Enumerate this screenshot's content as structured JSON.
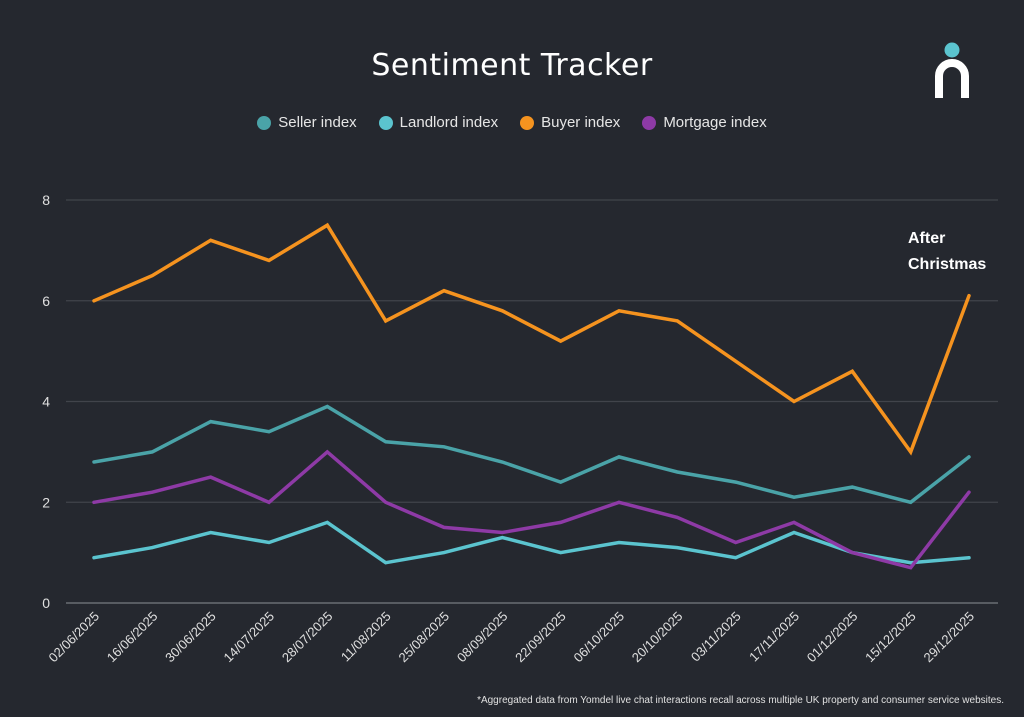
{
  "chart_data": {
    "type": "line",
    "title": "Sentiment Tracker",
    "xlabel": "",
    "ylabel": "",
    "ylim": [
      0,
      8
    ],
    "yticks": [
      0,
      2,
      4,
      6,
      8
    ],
    "grid": true,
    "legend_position": "top-center",
    "x": [
      "02/06/2025",
      "16/06/2025",
      "30/06/2025",
      "14/07/2025",
      "28/07/2025",
      "11/08/2025",
      "25/08/2025",
      "08/09/2025",
      "22/09/2025",
      "06/10/2025",
      "20/10/2025",
      "03/11/2025",
      "17/11/2025",
      "01/12/2025",
      "15/12/2025",
      "29/12/2025"
    ],
    "series": [
      {
        "name": "Seller index",
        "color": "#4aa3a8",
        "values": [
          2.8,
          3.0,
          3.6,
          3.4,
          3.9,
          3.2,
          3.1,
          2.8,
          2.4,
          2.9,
          2.6,
          2.4,
          2.1,
          2.3,
          2.0,
          2.9
        ]
      },
      {
        "name": "Landlord index",
        "color": "#5bc4cf",
        "values": [
          0.9,
          1.1,
          1.4,
          1.2,
          1.6,
          0.8,
          1.0,
          1.3,
          1.0,
          1.2,
          1.1,
          0.9,
          1.4,
          1.0,
          0.8,
          0.9
        ]
      },
      {
        "name": "Buyer index",
        "color": "#f5931f",
        "values": [
          6.0,
          6.5,
          7.2,
          6.8,
          7.5,
          5.6,
          6.2,
          5.8,
          5.2,
          5.8,
          5.6,
          4.8,
          4.0,
          4.6,
          3.0,
          6.1
        ]
      },
      {
        "name": "Mortgage index",
        "color": "#8e3aa6",
        "values": [
          2.0,
          2.2,
          2.5,
          2.0,
          3.0,
          2.0,
          1.5,
          1.4,
          1.6,
          2.0,
          1.7,
          1.2,
          1.6,
          1.0,
          0.7,
          2.2
        ]
      }
    ],
    "annotations": [
      {
        "text_line1": "After",
        "text_line2": "Christmas",
        "x": "29/12/2025"
      }
    ]
  },
  "footnote": "*Aggregated data from Yomdel live chat interactions recall across multiple UK property and consumer service websites.",
  "logo": {
    "dot_color": "#5bc4cf",
    "arch_color": "#ffffff"
  }
}
